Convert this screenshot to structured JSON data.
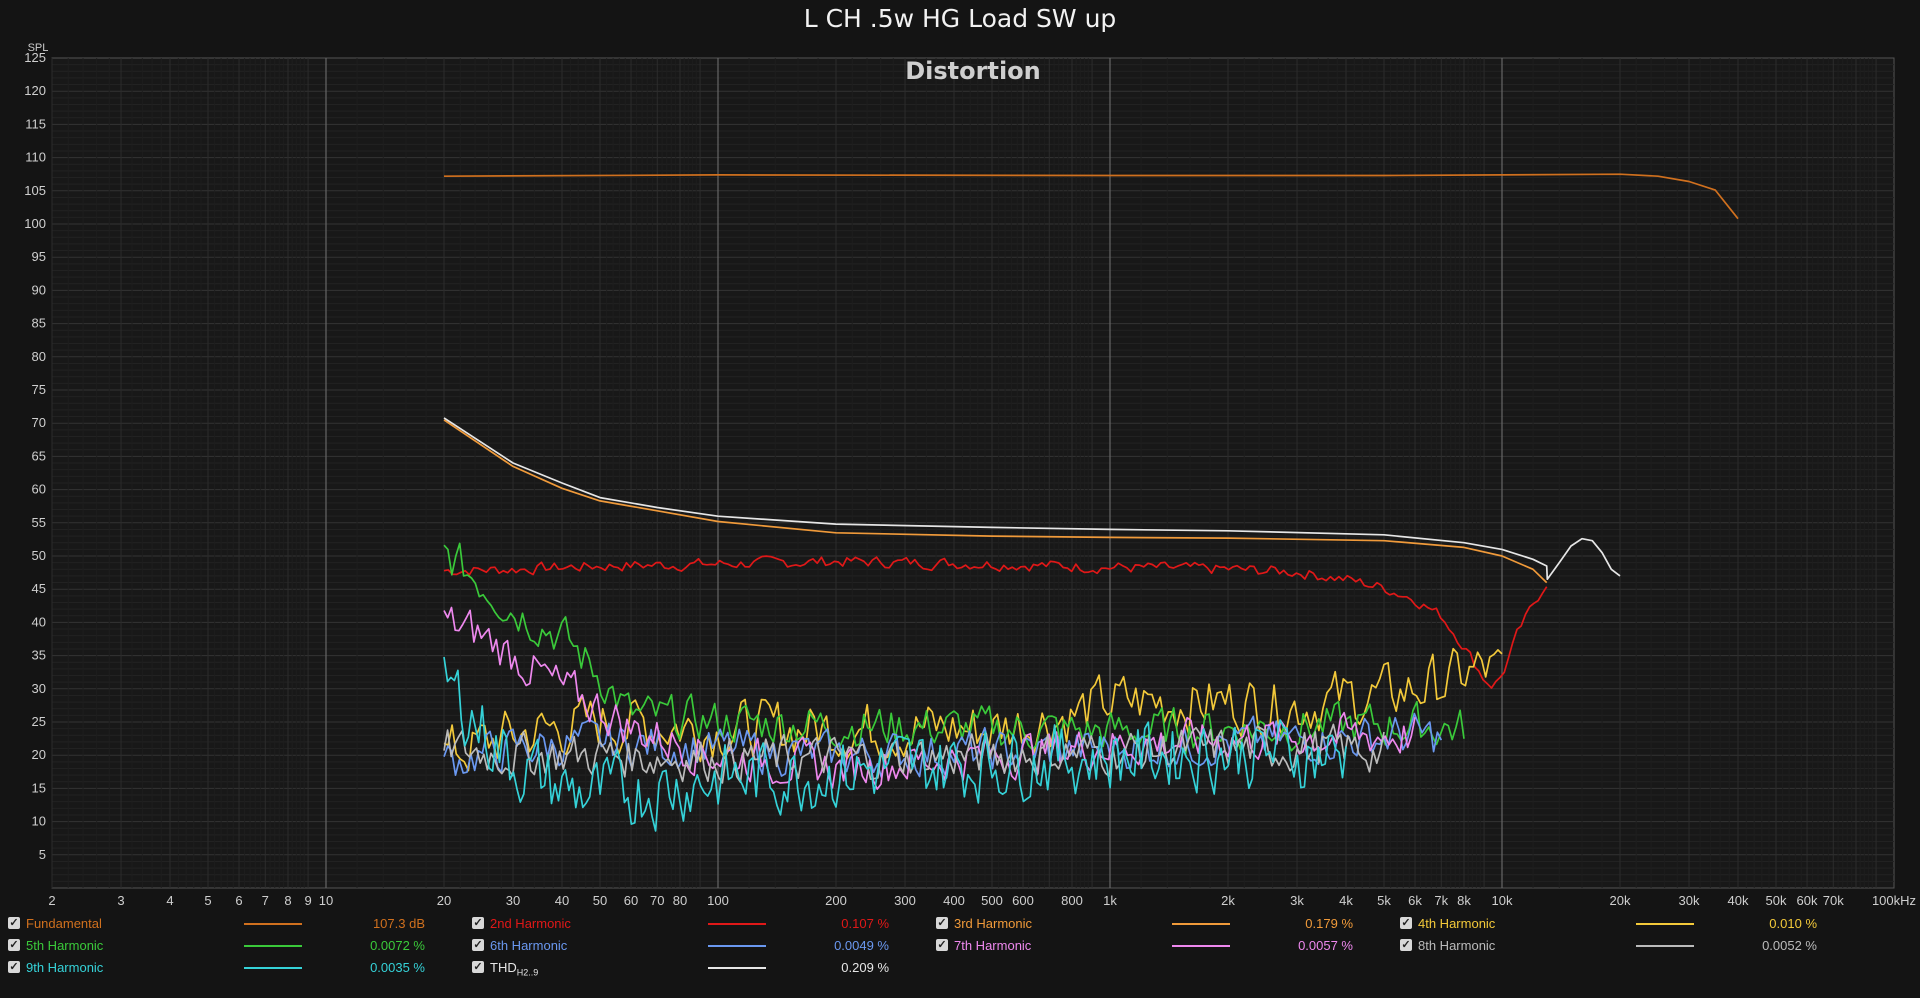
{
  "window": {
    "title": "L CH .5w HG Load SW up"
  },
  "chart_data": {
    "type": "line",
    "title": "Distortion",
    "ylabel": "SPL",
    "xscale": "log",
    "xlim": [
      2,
      100000
    ],
    "ylim": [
      0,
      125
    ],
    "grid": true,
    "legend_position": "bottom",
    "x_tick_labels": [
      "2",
      "3",
      "4",
      "5",
      "6",
      "7",
      "8",
      "9",
      "10",
      "20",
      "30",
      "40",
      "50",
      "60",
      "70",
      "80",
      "100",
      "200",
      "300",
      "400",
      "500",
      "600",
      "800",
      "1k",
      "2k",
      "3k",
      "4k",
      "5k",
      "6k",
      "7k",
      "8k",
      "10k",
      "20k",
      "30k",
      "40k",
      "50k",
      "60k",
      "70k",
      "100kHz"
    ],
    "y_tick_labels": [
      "5",
      "10",
      "15",
      "20",
      "25",
      "30",
      "35",
      "40",
      "45",
      "50",
      "55",
      "60",
      "65",
      "70",
      "75",
      "80",
      "85",
      "90",
      "95",
      "100",
      "105",
      "110",
      "115",
      "120",
      "125"
    ],
    "series": [
      {
        "name": "Fundamental",
        "color": "#d0701e",
        "value": "107.3 dB",
        "x": [
          20,
          100,
          1000,
          5000,
          10000,
          20000,
          25000,
          30000,
          35000,
          40000
        ],
        "y": [
          107.2,
          107.4,
          107.3,
          107.3,
          107.4,
          107.5,
          107.2,
          106.4,
          105.1,
          100.8
        ]
      },
      {
        "name": "2nd Harmonic",
        "color": "#e01818",
        "value": "0.107 %",
        "noise": 0.8,
        "x": [
          20,
          30,
          50,
          100,
          200,
          500,
          1000,
          2000,
          3000,
          4000,
          5000,
          6000,
          7000,
          8000,
          9000,
          9500,
          10000,
          11000,
          13000
        ],
        "y": [
          47.8,
          48.0,
          48.5,
          48.8,
          49.2,
          48.8,
          48.3,
          48.0,
          47.6,
          46.5,
          45.2,
          43.5,
          41.0,
          36.5,
          31.5,
          30.5,
          32.0,
          38.5,
          46.2
        ]
      },
      {
        "name": "3rd Harmonic",
        "color": "#f09a3a",
        "value": "0.179 %",
        "x": [
          20,
          30,
          40,
          50,
          70,
          100,
          200,
          500,
          1000,
          2000,
          5000,
          8000,
          10000,
          12000,
          13000
        ],
        "y": [
          70.5,
          63.5,
          60.2,
          58.3,
          56.8,
          55.2,
          53.5,
          53.0,
          52.8,
          52.7,
          52.3,
          51.3,
          50.0,
          48.0,
          46.0
        ]
      },
      {
        "name": "4th Harmonic",
        "color": "#f3c93a",
        "value": "0.010 %",
        "noise": 4,
        "x": [
          20,
          30,
          50,
          100,
          200,
          500,
          800,
          1000,
          2000,
          3000,
          4000,
          5000,
          6000,
          7000,
          8000,
          9000,
          10000
        ],
        "y": [
          20,
          23,
          25,
          24,
          24,
          24,
          26,
          28,
          28,
          27.5,
          28.5,
          29,
          30,
          31,
          32,
          33,
          32
        ]
      },
      {
        "name": "5th Harmonic",
        "color": "#3ac93a",
        "value": "0.0072 %",
        "noise": 3,
        "x": [
          20,
          25,
          30,
          40,
          50,
          60,
          100,
          200,
          500,
          1000,
          2000,
          4000,
          6000,
          8000
        ],
        "y": [
          50.5,
          46,
          42,
          38,
          32,
          26,
          25,
          24.5,
          24,
          23.5,
          24,
          24.5,
          24.5,
          24
        ]
      },
      {
        "name": "6th Harmonic",
        "color": "#6a98f0",
        "value": "0.0049 %",
        "noise": 3,
        "x": [
          20,
          30,
          50,
          100,
          200,
          500,
          1000,
          2000,
          4000,
          6000,
          7000
        ],
        "y": [
          19,
          21,
          22,
          21,
          20,
          20.5,
          21,
          22,
          22.5,
          23,
          22.5
        ]
      },
      {
        "name": "7th Harmonic",
        "color": "#ee88ee",
        "value": "0.0057 %",
        "noise": 3,
        "x": [
          20,
          25,
          30,
          40,
          50,
          60,
          100,
          200,
          500,
          1000,
          2000,
          5000,
          6000
        ],
        "y": [
          40,
          38,
          35,
          30,
          27,
          24,
          20,
          18,
          20,
          21.5,
          22.5,
          23,
          23
        ]
      },
      {
        "name": "8th Harmonic",
        "color": "#bbbbbb",
        "value": "0.0052 %",
        "noise": 3,
        "x": [
          20,
          30,
          50,
          100,
          200,
          500,
          1000,
          2000,
          4000,
          5000
        ],
        "y": [
          21,
          20,
          20,
          19.5,
          19.5,
          20,
          20.5,
          21,
          21,
          20.5
        ]
      },
      {
        "name": "9th Harmonic",
        "color": "#35d2d8",
        "value": "0.0035 %",
        "noise": 5,
        "x": [
          20,
          25,
          30,
          40,
          50,
          70,
          100,
          200,
          500,
          1000,
          2000,
          4000
        ],
        "y": [
          31.5,
          24,
          19,
          15,
          14,
          15,
          16.5,
          17.5,
          19,
          20,
          20.5,
          20
        ]
      },
      {
        "name": "THDH2..9",
        "color": "#e6e6e6",
        "value": "0.209 %",
        "x": [
          20,
          30,
          40,
          50,
          70,
          100,
          200,
          500,
          1000,
          2000,
          5000,
          8000,
          10000,
          12000,
          13000,
          13050,
          14000,
          15000,
          16000,
          17000,
          18000,
          19000,
          20000
        ],
        "y": [
          70.8,
          64,
          61,
          58.8,
          57.3,
          56,
          54.8,
          54.3,
          54,
          53.8,
          53.2,
          52,
          51,
          49.5,
          48.5,
          46.5,
          49,
          51.5,
          52.6,
          52.3,
          50.5,
          48,
          47
        ]
      }
    ]
  }
}
